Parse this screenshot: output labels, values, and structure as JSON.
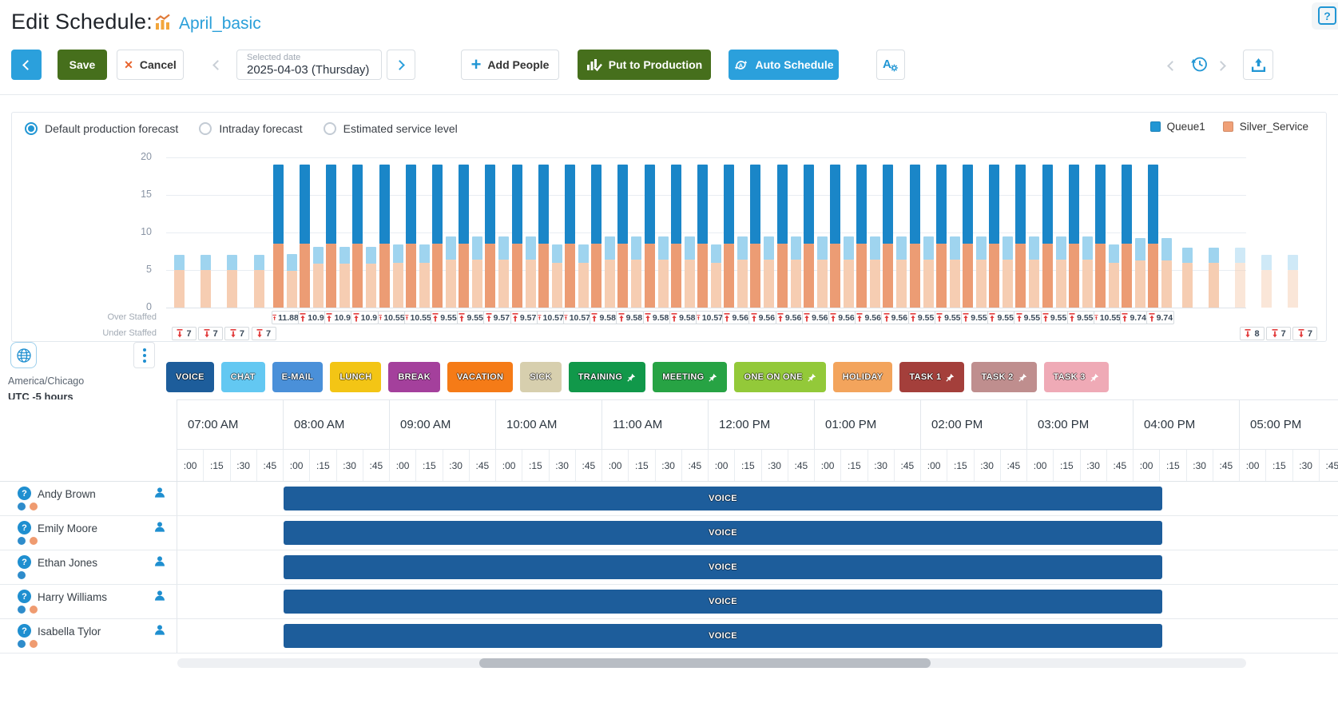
{
  "header": {
    "title": "Edit Schedule:",
    "schedule_name": "April_basic"
  },
  "toolbar": {
    "save": "Save",
    "cancel": "Cancel",
    "selected_date_label": "Selected date",
    "selected_date_value": "2025-04-03 (Thursday)",
    "add_people": "Add People",
    "put_to_production": "Put to Production",
    "auto_schedule": "Auto Schedule"
  },
  "icons": {
    "help": "?",
    "cancel_x": "✕",
    "add_plus": "+",
    "question_badge": "?"
  },
  "forecast_panel": {
    "options": [
      {
        "label": "Default production forecast",
        "selected": true
      },
      {
        "label": "Intraday forecast",
        "selected": false
      },
      {
        "label": "Estimated service level",
        "selected": false
      }
    ],
    "legend": [
      {
        "label": "Queue1",
        "color": "#2196d4"
      },
      {
        "label": "Silver_Service",
        "color": "#f0a077"
      }
    ]
  },
  "chart_data": {
    "type": "bar",
    "ylim": [
      0,
      20
    ],
    "yticks": [
      0,
      5,
      10,
      15,
      20
    ],
    "row_labels": {
      "over": "Over Staffed",
      "under": "Under Staffed"
    },
    "colors": {
      "queue1_scheduled": "#1a86c8",
      "queue1_required": "#9fd4ef",
      "silver_scheduled": "#ec9c74",
      "silver_required": "#f6cdb2"
    },
    "slots": [
      {
        "t": "07:00 AM",
        "rq": 2,
        "rs": 5,
        "sq": null,
        "ss": null,
        "ov": null,
        "un": "7",
        "fd": false
      },
      {
        "t": "07:15 AM",
        "rq": 2,
        "rs": 5,
        "sq": null,
        "ss": null,
        "ov": null,
        "un": "7",
        "fd": false
      },
      {
        "t": "07:30 AM",
        "rq": 2,
        "rs": 5,
        "sq": null,
        "ss": null,
        "ov": null,
        "un": "7",
        "fd": false
      },
      {
        "t": "07:45 AM",
        "rq": 2,
        "rs": 5,
        "sq": null,
        "ss": null,
        "ov": null,
        "un": "7",
        "fd": false
      },
      {
        "t": "08:00 AM",
        "rq": 2.22,
        "rs": 4.9,
        "sq": 10.5,
        "ss": 8.5,
        "ov": "11.88",
        "un": null,
        "fd": false
      },
      {
        "t": "08:15 AM",
        "rq": 2.3,
        "rs": 5.8,
        "sq": 10.5,
        "ss": 8.5,
        "ov": "10.9",
        "un": null,
        "fd": false
      },
      {
        "t": "08:30 AM",
        "rq": 2.3,
        "rs": 5.8,
        "sq": 10.5,
        "ss": 8.5,
        "ov": "10.9",
        "un": null,
        "fd": false
      },
      {
        "t": "08:45 AM",
        "rq": 2.3,
        "rs": 5.8,
        "sq": 10.5,
        "ss": 8.5,
        "ov": "10.9",
        "un": null,
        "fd": false
      },
      {
        "t": "09:00 AM",
        "rq": 2.45,
        "rs": 6,
        "sq": 10.5,
        "ss": 8.5,
        "ov": "10.55",
        "un": null,
        "fd": false
      },
      {
        "t": "09:15 AM",
        "rq": 2.45,
        "rs": 6,
        "sq": 10.5,
        "ss": 8.5,
        "ov": "10.55",
        "un": null,
        "fd": false
      },
      {
        "t": "09:30 AM",
        "rq": 3.05,
        "rs": 6.4,
        "sq": 10.5,
        "ss": 8.5,
        "ov": "9.55",
        "un": null,
        "fd": false
      },
      {
        "t": "09:45 AM",
        "rq": 3.05,
        "rs": 6.4,
        "sq": 10.5,
        "ss": 8.5,
        "ov": "9.55",
        "un": null,
        "fd": false
      },
      {
        "t": "10:00 AM",
        "rq": 3.03,
        "rs": 6.4,
        "sq": 10.5,
        "ss": 8.5,
        "ov": "9.57",
        "un": null,
        "fd": false
      },
      {
        "t": "10:15 AM",
        "rq": 3.03,
        "rs": 6.4,
        "sq": 10.5,
        "ss": 8.5,
        "ov": "9.57",
        "un": null,
        "fd": false
      },
      {
        "t": "10:30 AM",
        "rq": 2.43,
        "rs": 6,
        "sq": 10.5,
        "ss": 8.5,
        "ov": "10.57",
        "un": null,
        "fd": false
      },
      {
        "t": "10:45 AM",
        "rq": 2.43,
        "rs": 6,
        "sq": 10.5,
        "ss": 8.5,
        "ov": "10.57",
        "un": null,
        "fd": false
      },
      {
        "t": "11:00 AM",
        "rq": 3.02,
        "rs": 6.4,
        "sq": 10.5,
        "ss": 8.5,
        "ov": "9.58",
        "un": null,
        "fd": false
      },
      {
        "t": "11:15 AM",
        "rq": 3.02,
        "rs": 6.4,
        "sq": 10.5,
        "ss": 8.5,
        "ov": "9.58",
        "un": null,
        "fd": false
      },
      {
        "t": "11:30 AM",
        "rq": 3.02,
        "rs": 6.4,
        "sq": 10.5,
        "ss": 8.5,
        "ov": "9.58",
        "un": null,
        "fd": false
      },
      {
        "t": "11:45 AM",
        "rq": 3.02,
        "rs": 6.4,
        "sq": 10.5,
        "ss": 8.5,
        "ov": "9.58",
        "un": null,
        "fd": false
      },
      {
        "t": "12:00 PM",
        "rq": 2.43,
        "rs": 6,
        "sq": 10.5,
        "ss": 8.5,
        "ov": "10.57",
        "un": null,
        "fd": false
      },
      {
        "t": "12:15 PM",
        "rq": 3.04,
        "rs": 6.4,
        "sq": 10.5,
        "ss": 8.5,
        "ov": "9.56",
        "un": null,
        "fd": false
      },
      {
        "t": "12:30 PM",
        "rq": 3.04,
        "rs": 6.4,
        "sq": 10.5,
        "ss": 8.5,
        "ov": "9.56",
        "un": null,
        "fd": false
      },
      {
        "t": "12:45 PM",
        "rq": 3.04,
        "rs": 6.4,
        "sq": 10.5,
        "ss": 8.5,
        "ov": "9.56",
        "un": null,
        "fd": false
      },
      {
        "t": "01:00 PM",
        "rq": 3.04,
        "rs": 6.4,
        "sq": 10.5,
        "ss": 8.5,
        "ov": "9.56",
        "un": null,
        "fd": false
      },
      {
        "t": "01:15 PM",
        "rq": 3.04,
        "rs": 6.4,
        "sq": 10.5,
        "ss": 8.5,
        "ov": "9.56",
        "un": null,
        "fd": false
      },
      {
        "t": "01:30 PM",
        "rq": 3.04,
        "rs": 6.4,
        "sq": 10.5,
        "ss": 8.5,
        "ov": "9.56",
        "un": null,
        "fd": false
      },
      {
        "t": "01:45 PM",
        "rq": 3.04,
        "rs": 6.4,
        "sq": 10.5,
        "ss": 8.5,
        "ov": "9.56",
        "un": null,
        "fd": false
      },
      {
        "t": "02:00 PM",
        "rq": 3.05,
        "rs": 6.4,
        "sq": 10.5,
        "ss": 8.5,
        "ov": "9.55",
        "un": null,
        "fd": false
      },
      {
        "t": "02:15 PM",
        "rq": 3.05,
        "rs": 6.4,
        "sq": 10.5,
        "ss": 8.5,
        "ov": "9.55",
        "un": null,
        "fd": false
      },
      {
        "t": "02:30 PM",
        "rq": 3.05,
        "rs": 6.4,
        "sq": 10.5,
        "ss": 8.5,
        "ov": "9.55",
        "un": null,
        "fd": false
      },
      {
        "t": "02:45 PM",
        "rq": 3.05,
        "rs": 6.4,
        "sq": 10.5,
        "ss": 8.5,
        "ov": "9.55",
        "un": null,
        "fd": false
      },
      {
        "t": "03:00 PM",
        "rq": 3.05,
        "rs": 6.4,
        "sq": 10.5,
        "ss": 8.5,
        "ov": "9.55",
        "un": null,
        "fd": false
      },
      {
        "t": "03:15 PM",
        "rq": 3.05,
        "rs": 6.4,
        "sq": 10.5,
        "ss": 8.5,
        "ov": "9.55",
        "un": null,
        "fd": false
      },
      {
        "t": "03:30 PM",
        "rq": 3.05,
        "rs": 6.4,
        "sq": 10.5,
        "ss": 8.5,
        "ov": "9.55",
        "un": null,
        "fd": false
      },
      {
        "t": "03:45 PM",
        "rq": 2.45,
        "rs": 6,
        "sq": 10.5,
        "ss": 8.5,
        "ov": "10.55",
        "un": null,
        "fd": false
      },
      {
        "t": "04:00 PM",
        "rq": 2.96,
        "rs": 6.3,
        "sq": 10.5,
        "ss": 8.5,
        "ov": "9.74",
        "un": null,
        "fd": false
      },
      {
        "t": "04:15 PM",
        "rq": 2.96,
        "rs": 6.3,
        "sq": 10.5,
        "ss": 8.5,
        "ov": "9.74",
        "un": null,
        "fd": false
      },
      {
        "t": "04:30 PM",
        "rq": 2,
        "rs": 6,
        "sq": null,
        "ss": null,
        "ov": null,
        "un": null,
        "fd": false
      },
      {
        "t": "04:45 PM",
        "rq": 2,
        "rs": 6,
        "sq": null,
        "ss": null,
        "ov": null,
        "un": null,
        "fd": false
      },
      {
        "t": "05:00 PM",
        "rq": 2,
        "rs": 6,
        "sq": null,
        "ss": null,
        "ov": null,
        "un": "8",
        "fd": true
      },
      {
        "t": "05:15 PM",
        "rq": 2,
        "rs": 5,
        "sq": null,
        "ss": null,
        "ov": null,
        "un": "7",
        "fd": true
      },
      {
        "t": "05:30 PM",
        "rq": 2,
        "rs": 5,
        "sq": null,
        "ss": null,
        "ov": null,
        "un": "7",
        "fd": true
      }
    ]
  },
  "activities": [
    {
      "label": "VOICE",
      "color": "#1d5d9b",
      "pinned": false
    },
    {
      "label": "CHAT",
      "color": "#63c8f2",
      "pinned": false
    },
    {
      "label": "E-MAIL",
      "color": "#4a90d9",
      "pinned": false
    },
    {
      "label": "LUNCH",
      "color": "#f3c515",
      "pinned": false
    },
    {
      "label": "BREAK",
      "color": "#a4409c",
      "pinned": false
    },
    {
      "label": "VACATION",
      "color": "#f57b17",
      "pinned": false
    },
    {
      "label": "SICK",
      "color": "#d7cfae",
      "pinned": false
    },
    {
      "label": "TRAINING",
      "color": "#11984a",
      "pinned": true
    },
    {
      "label": "MEETING",
      "color": "#27a344",
      "pinned": true
    },
    {
      "label": "ONE ON ONE",
      "color": "#93c939",
      "pinned": true
    },
    {
      "label": "HOLIDAY",
      "color": "#f3a45c",
      "pinned": false
    },
    {
      "label": "TASK 1",
      "color": "#a43f3b",
      "pinned": true
    },
    {
      "label": "TASK 2",
      "color": "#bf8e8e",
      "pinned": true
    },
    {
      "label": "TASK 3",
      "color": "#efaab6",
      "pinned": true
    }
  ],
  "schedule": {
    "timezone_region": "America/Chicago",
    "timezone_offset": "UTC -5 hours",
    "hours": [
      "07:00 AM",
      "08:00 AM",
      "09:00 AM",
      "10:00 AM",
      "11:00 AM",
      "12:00 PM",
      "01:00 PM",
      "02:00 PM",
      "03:00 PM",
      "04:00 PM",
      "05:00 PM"
    ],
    "quarters": [
      ":00",
      ":15",
      ":30",
      ":45"
    ],
    "shift_label": "VOICE",
    "employees": [
      {
        "name": "Andy Brown",
        "dots": [
          "blue",
          "orange"
        ]
      },
      {
        "name": "Emily Moore",
        "dots": [
          "blue",
          "orange"
        ]
      },
      {
        "name": "Ethan Jones",
        "dots": [
          "blue"
        ]
      },
      {
        "name": "Harry Williams",
        "dots": [
          "blue",
          "orange"
        ]
      },
      {
        "name": "Isabella Tylor",
        "dots": [
          "blue",
          "orange"
        ]
      }
    ]
  }
}
